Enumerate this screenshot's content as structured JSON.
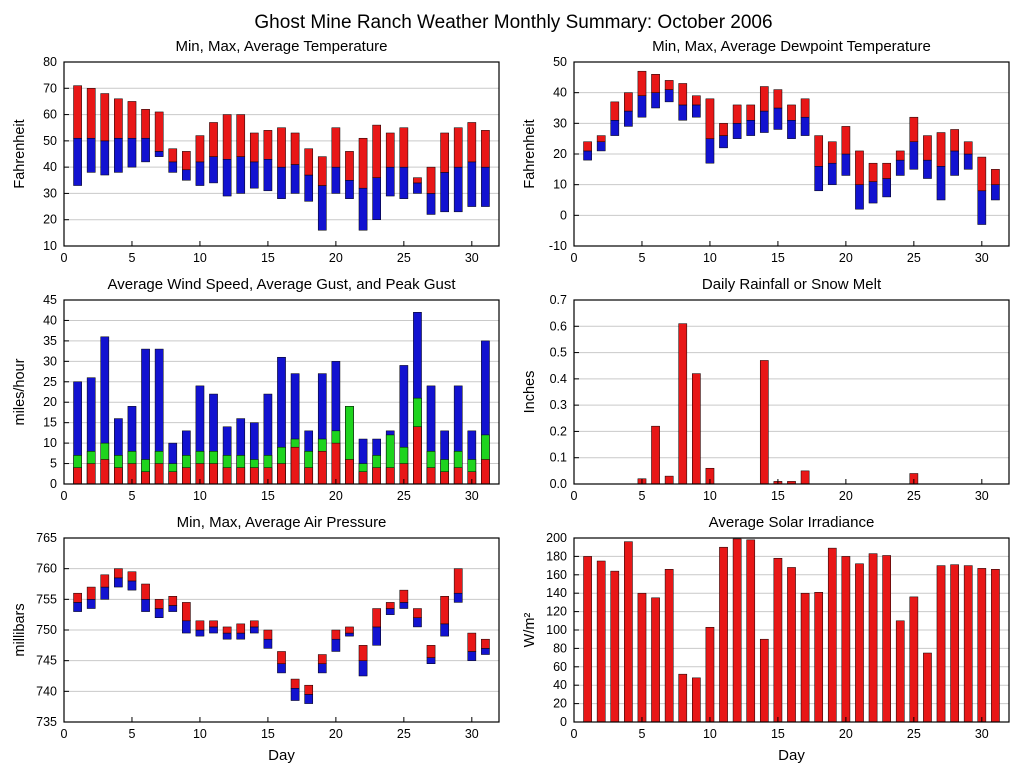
{
  "title": "Ghost Mine Ranch Weather Monthly Summary: October 2006",
  "days": [
    1,
    2,
    3,
    4,
    5,
    6,
    7,
    8,
    9,
    10,
    11,
    12,
    13,
    14,
    15,
    16,
    17,
    18,
    19,
    20,
    21,
    22,
    23,
    24,
    25,
    26,
    27,
    28,
    29,
    30,
    31
  ],
  "chart_data": [
    {
      "id": "temperature",
      "type": "range-bar",
      "title": "Min, Max, Average Temperature",
      "ylabel": "Fahrenheit",
      "xlabel": "",
      "ylim": [
        10,
        80
      ],
      "ytick_step": 10,
      "xlim": [
        0,
        32
      ],
      "xticks": [
        0,
        5,
        10,
        15,
        20,
        25,
        30
      ],
      "colors": {
        "min_to_avg": "#1212d0",
        "avg_to_max": "#e81717"
      },
      "min": [
        33,
        38,
        37,
        38,
        40,
        42,
        44,
        38,
        35,
        33,
        34,
        29,
        30,
        32,
        31,
        28,
        30,
        27,
        16,
        30,
        28,
        16,
        20,
        29,
        28,
        30,
        22,
        23,
        23,
        25,
        25
      ],
      "avg": [
        51,
        51,
        50,
        51,
        51,
        51,
        46,
        42,
        39,
        42,
        44,
        43,
        44,
        42,
        43,
        40,
        41,
        37,
        33,
        40,
        35,
        32,
        36,
        40,
        40,
        34,
        30,
        38,
        40,
        42,
        40
      ],
      "max": [
        71,
        70,
        68,
        66,
        65,
        62,
        61,
        47,
        46,
        52,
        57,
        60,
        60,
        53,
        54,
        55,
        53,
        47,
        44,
        55,
        46,
        51,
        56,
        53,
        55,
        36,
        40,
        53,
        55,
        57,
        54
      ]
    },
    {
      "id": "dewpoint",
      "type": "range-bar",
      "title": "Min, Max, Average Dewpoint Temperature",
      "ylabel": "Fahrenheit",
      "xlabel": "",
      "ylim": [
        -10,
        50
      ],
      "ytick_step": 10,
      "xlim": [
        0,
        32
      ],
      "xticks": [
        0,
        5,
        10,
        15,
        20,
        25,
        30
      ],
      "colors": {
        "min_to_avg": "#1212d0",
        "avg_to_max": "#e81717"
      },
      "min": [
        18,
        21,
        26,
        29,
        32,
        35,
        37,
        31,
        32,
        17,
        22,
        25,
        26,
        27,
        28,
        25,
        26,
        8,
        10,
        13,
        2,
        4,
        6,
        13,
        15,
        12,
        5,
        13,
        15,
        -3,
        5
      ],
      "avg": [
        21,
        24,
        31,
        34,
        39,
        40,
        41,
        36,
        36,
        25,
        26,
        30,
        31,
        34,
        35,
        31,
        32,
        16,
        17,
        20,
        10,
        11,
        12,
        18,
        24,
        18,
        16,
        21,
        20,
        8,
        10
      ],
      "max": [
        24,
        26,
        37,
        40,
        47,
        46,
        44,
        43,
        39,
        38,
        30,
        36,
        36,
        42,
        41,
        36,
        38,
        26,
        24,
        29,
        21,
        17,
        17,
        21,
        32,
        26,
        27,
        28,
        24,
        19,
        15
      ]
    },
    {
      "id": "wind",
      "type": "overlay-bar",
      "title": "Average Wind Speed, Average Gust, and Peak Gust",
      "ylabel": "miles/hour",
      "xlabel": "",
      "ylim": [
        0,
        45
      ],
      "ytick_step": 5,
      "xlim": [
        0,
        32
      ],
      "xticks": [
        0,
        5,
        10,
        15,
        20,
        25,
        30
      ],
      "series": [
        {
          "name": "Peak Gust",
          "color": "#1212d0",
          "values": [
            25,
            26,
            36,
            16,
            19,
            33,
            33,
            10,
            13,
            24,
            22,
            14,
            16,
            15,
            22,
            31,
            27,
            13,
            27,
            30,
            19,
            11,
            11,
            13,
            29,
            42,
            24,
            13,
            24,
            13,
            35
          ]
        },
        {
          "name": "Average Gust",
          "color": "#1ed41e",
          "values": [
            7,
            8,
            10,
            7,
            8,
            6,
            8,
            5,
            7,
            8,
            8,
            7,
            7,
            6,
            7,
            9,
            11,
            8,
            11,
            13,
            19,
            5,
            7,
            12,
            9,
            21,
            8,
            6,
            8,
            6,
            12
          ]
        },
        {
          "name": "Average Wind Speed",
          "color": "#e81717",
          "values": [
            4,
            5,
            6,
            4,
            5,
            3,
            5,
            3,
            4,
            5,
            5,
            4,
            4,
            4,
            4,
            5,
            9,
            4,
            8,
            10,
            6,
            3,
            4,
            4,
            5,
            14,
            4,
            3,
            4,
            3,
            6
          ]
        }
      ]
    },
    {
      "id": "rainfall",
      "type": "bar",
      "title": "Daily Rainfall or Snow Melt",
      "ylabel": "Inches",
      "xlabel": "",
      "ylim": [
        0,
        0.7
      ],
      "ytick_step": 0.1,
      "xlim": [
        0,
        32
      ],
      "xticks": [
        0,
        5,
        10,
        15,
        20,
        25,
        30
      ],
      "color": "#e81717",
      "values": [
        0,
        0,
        0,
        0,
        0.02,
        0.22,
        0.03,
        0.61,
        0.42,
        0.06,
        0,
        0,
        0,
        0.47,
        0.01,
        0.01,
        0.05,
        0,
        0,
        0,
        0,
        0,
        0,
        0,
        0.04,
        0,
        0,
        0,
        0,
        0,
        0
      ]
    },
    {
      "id": "pressure",
      "type": "range-bar",
      "title": "Min, Max, Average Air Pressure",
      "ylabel": "millibars",
      "xlabel": "Day",
      "ylim": [
        735,
        765
      ],
      "ytick_step": 5,
      "xlim": [
        0,
        32
      ],
      "xticks": [
        0,
        5,
        10,
        15,
        20,
        25,
        30
      ],
      "colors": {
        "min_to_avg": "#1212d0",
        "avg_to_max": "#e81717"
      },
      "min": [
        753,
        753.5,
        755,
        757,
        756.5,
        753,
        752,
        753,
        749.5,
        749,
        749.5,
        748.5,
        748.5,
        749.5,
        747,
        743,
        738.5,
        738,
        743,
        746.5,
        749,
        742.5,
        747.5,
        752.5,
        753.5,
        750.5,
        744.5,
        749,
        754.5,
        745,
        746
      ],
      "avg": [
        754.5,
        755,
        757,
        758.5,
        758,
        755,
        753.5,
        754,
        751.5,
        750,
        750.5,
        749.5,
        749.5,
        750.5,
        748.5,
        744.5,
        740.5,
        739.5,
        744.5,
        748.5,
        749.5,
        745,
        750.5,
        753.5,
        754.5,
        752,
        745.5,
        751,
        756,
        746.5,
        747
      ],
      "max": [
        756,
        757,
        759,
        760,
        759.5,
        757.5,
        755,
        755.5,
        754.5,
        751.5,
        751.5,
        750.5,
        751,
        751.5,
        750,
        746.5,
        742,
        741,
        746,
        750,
        750.5,
        747.5,
        753.5,
        754.5,
        756.5,
        753.5,
        747.5,
        755.5,
        760,
        749.5,
        748.5
      ]
    },
    {
      "id": "solar",
      "type": "bar",
      "title": "Average Solar Irradiance",
      "ylabel": "W/m²",
      "xlabel": "Day",
      "ylim": [
        0,
        200
      ],
      "ytick_step": 20,
      "xlim": [
        0,
        32
      ],
      "xticks": [
        0,
        5,
        10,
        15,
        20,
        25,
        30
      ],
      "color": "#e81717",
      "values": [
        180,
        175,
        164,
        196,
        140,
        135,
        166,
        52,
        48,
        103,
        190,
        199,
        198,
        90,
        178,
        168,
        140,
        141,
        189,
        180,
        172,
        183,
        181,
        110,
        136,
        75,
        170,
        171,
        170,
        167,
        166
      ]
    }
  ]
}
